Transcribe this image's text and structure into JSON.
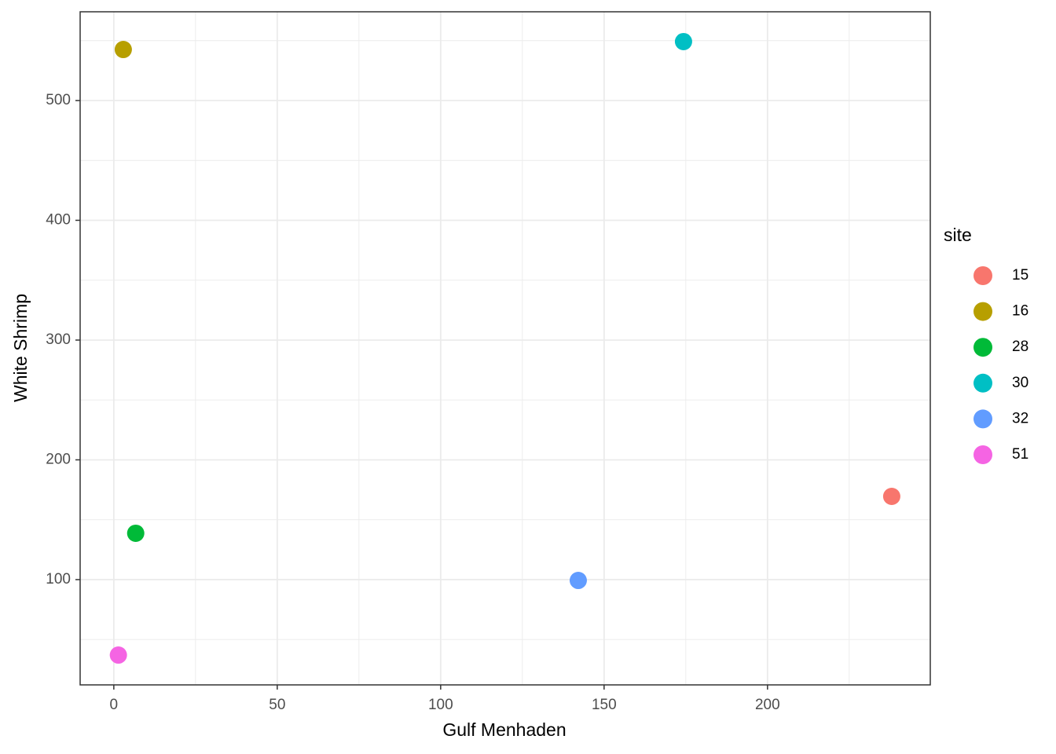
{
  "chart_data": {
    "type": "scatter",
    "x_label": "Gulf Menhaden",
    "y_label": "White Shrimp",
    "legend_title": "site",
    "legend": "right",
    "grid": true,
    "xlim": [
      -10.3,
      249.8
    ],
    "xticks": [
      0,
      50,
      100,
      150,
      200
    ],
    "xminor": [
      25,
      75,
      125,
      175,
      225
    ],
    "ylim": [
      12.1,
      574.1
    ],
    "yticks": [
      100,
      200,
      300,
      400,
      500
    ],
    "yminor": [
      50,
      150,
      250,
      350,
      450,
      550
    ],
    "series": [
      {
        "name": "15",
        "color": "#F8766D",
        "x": [
          238.0
        ],
        "values": [
          169.5
        ]
      },
      {
        "name": "16",
        "color": "#B79F00",
        "x": [
          2.9
        ],
        "values": [
          542.6
        ]
      },
      {
        "name": "28",
        "color": "#00BA38",
        "x": [
          6.7
        ],
        "values": [
          138.7
        ]
      },
      {
        "name": "30",
        "color": "#00BFC4",
        "x": [
          174.3
        ],
        "values": [
          549.2
        ]
      },
      {
        "name": "32",
        "color": "#619CFF",
        "x": [
          142.1
        ],
        "values": [
          99.3
        ]
      },
      {
        "name": "51",
        "color": "#F564E3",
        "x": [
          1.4
        ],
        "values": [
          37.0
        ]
      }
    ]
  }
}
